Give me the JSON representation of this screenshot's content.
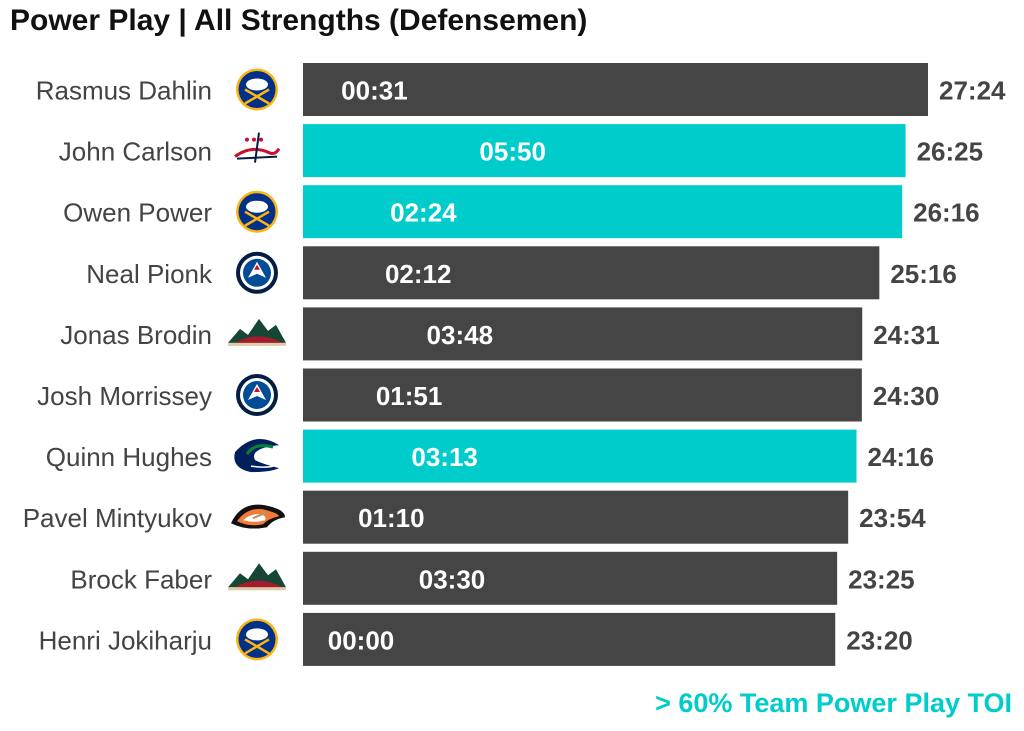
{
  "title": "Power Play | All Strengths (Defensemen)",
  "footnote": "> 60% Team Power Play TOI",
  "colors": {
    "highlight": "#00CCCC",
    "default": "#454545",
    "player_name": "#444444",
    "total_label": "#444444",
    "bar_label": "#ffffff"
  },
  "chart_data": {
    "type": "bar",
    "orientation": "horizontal",
    "categories": [
      "Rasmus Dahlin",
      "John Carlson",
      "Owen Power",
      "Neal Pionk",
      "Jonas Brodin",
      "Josh Morrissey",
      "Quinn Hughes",
      "Pavel Mintyukov",
      "Brock Faber",
      "Henri Jokiharju"
    ],
    "teams": [
      "buffalo-sabres",
      "washington-capitals",
      "buffalo-sabres",
      "winnipeg-jets",
      "minnesota-wild",
      "winnipeg-jets",
      "vancouver-canucks",
      "anaheim-ducks",
      "minnesota-wild",
      "buffalo-sabres"
    ],
    "values_minutes": [
      27.4,
      26.4167,
      26.2667,
      25.2667,
      24.5167,
      24.5,
      24.2667,
      23.9,
      23.4167,
      23.3333
    ],
    "total_toi_labels": [
      "27:24",
      "26:25",
      "26:16",
      "25:16",
      "24:31",
      "24:30",
      "24:16",
      "23:54",
      "23:25",
      "23:20"
    ],
    "pp_toi_labels": [
      "00:31",
      "05:50",
      "02:24",
      "02:12",
      "03:48",
      "01:51",
      "03:13",
      "01:10",
      "03:30",
      "00:00"
    ],
    "highlighted": [
      false,
      true,
      true,
      false,
      false,
      false,
      true,
      false,
      false,
      false
    ],
    "xlim": [
      0,
      27.4
    ],
    "grid": false,
    "xlabel": "",
    "ylabel": ""
  }
}
